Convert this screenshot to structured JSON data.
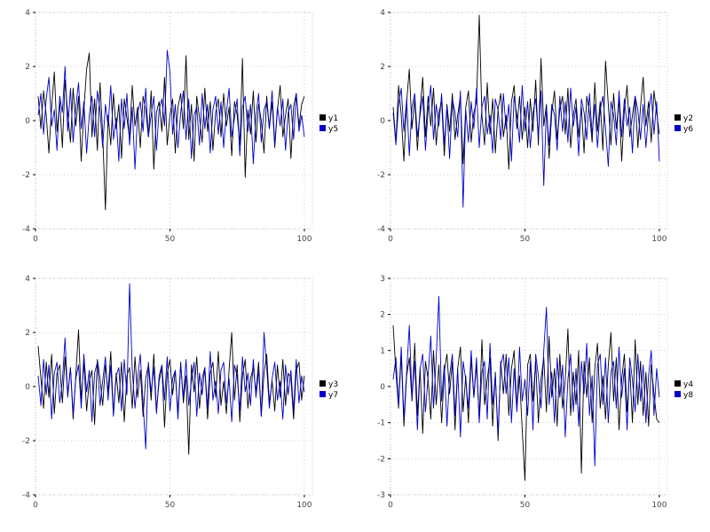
{
  "page": {
    "background": "#ffffff"
  },
  "chart_data": [
    {
      "type": "line",
      "panel": "top-left",
      "title": "",
      "xlabel": "",
      "ylabel": "",
      "xlim": [
        0,
        103
      ],
      "ylim": [
        -4,
        4
      ],
      "xticks": [
        0,
        50,
        100
      ],
      "yticks": [
        -4,
        -2,
        0,
        2,
        4
      ],
      "grid": true,
      "legend_position": "right-center",
      "x_start": 1,
      "series": [
        {
          "name": "y1",
          "color": "#000000",
          "values": [
            0.9,
            -0.3,
            1.1,
            0.2,
            -1.2,
            0.5,
            1.8,
            -0.4,
            0.7,
            -1.0,
            1.5,
            0.3,
            -0.8,
            1.2,
            -0.2,
            0.9,
            -1.5,
            0.4,
            1.9,
            2.5,
            -0.6,
            0.8,
            -1.1,
            1.4,
            -0.5,
            -3.3,
            0.2,
            -0.9,
            1.0,
            -0.3,
            0.6,
            -1.4,
            0.8,
            0.1,
            -0.7,
            1.3,
            -0.2,
            0.5,
            -1.0,
            0.9,
            0.4,
            -0.6,
            1.1,
            -1.8,
            0.3,
            0.7,
            -0.4,
            1.6,
            -0.9,
            0.2,
            0.8,
            -1.2,
            0.5,
            1.0,
            -0.3,
            2.4,
            -0.7,
            0.6,
            -1.5,
            0.9,
            0.1,
            -0.8,
            1.2,
            -0.4,
            0.7,
            -1.1,
            0.3,
            0.8,
            -0.6,
            1.0,
            -0.2,
            0.5,
            -1.3,
            0.7,
            0.2,
            -0.9,
            2.3,
            -2.1,
            0.4,
            -0.5,
            1.1,
            -0.8,
            0.6,
            0.0,
            -1.2,
            0.9,
            -0.3,
            0.7,
            -1.0,
            0.4,
            1.3,
            -0.6,
            0.2,
            0.8,
            -1.4,
            0.5,
            1.0,
            -0.2,
            0.6,
            0.9
          ]
        },
        {
          "name": "y5",
          "color": "#0000cc",
          "values": [
            0.2,
            1.0,
            -0.5,
            0.8,
            1.6,
            -0.2,
            0.4,
            -1.1,
            0.9,
            0.3,
            2.0,
            -0.4,
            1.2,
            -0.8,
            0.5,
            1.4,
            -0.3,
            0.7,
            -1.2,
            0.2,
            0.9,
            -0.6,
            1.1,
            0.4,
            -1.0,
            0.6,
            -0.2,
            1.3,
            -0.7,
            0.1,
            -1.5,
            0.8,
            -0.3,
            1.0,
            -0.9,
            0.5,
            -1.8,
            0.3,
            0.7,
            -0.4,
            1.2,
            -0.6,
            0.2,
            0.9,
            -1.1,
            0.4,
            0.8,
            -0.2,
            2.6,
            1.8,
            -0.5,
            0.6,
            -1.0,
            0.3,
            1.1,
            -0.7,
            0.8,
            -1.4,
            0.2,
            0.5,
            -0.9,
            1.0,
            -0.3,
            0.6,
            -1.2,
            0.4,
            0.9,
            -0.5,
            0.7,
            -1.0,
            0.3,
            1.2,
            -0.6,
            0.1,
            0.8,
            -1.3,
            0.5,
            0.9,
            -0.4,
            0.6,
            -1.6,
            0.2,
            1.0,
            -0.8,
            0.4,
            0.7,
            -0.3,
            1.1,
            -0.9,
            0.5,
            -0.2,
            0.8,
            -1.1,
            0.3,
            0.6,
            -0.7,
            1.0,
            -0.4,
            0.2,
            -0.6
          ]
        }
      ]
    },
    {
      "type": "line",
      "panel": "top-right",
      "title": "",
      "xlabel": "",
      "ylabel": "",
      "xlim": [
        0,
        103
      ],
      "ylim": [
        -4,
        4
      ],
      "xticks": [
        0,
        50,
        100
      ],
      "yticks": [
        -4,
        -2,
        0,
        2,
        4
      ],
      "grid": true,
      "legend_position": "right-center",
      "x_start": 1,
      "series": [
        {
          "name": "y2",
          "color": "#000000",
          "values": [
            0.5,
            -0.8,
            1.3,
            0.2,
            -1.5,
            0.7,
            1.9,
            -0.3,
            0.8,
            -1.1,
            0.4,
            1.6,
            -0.6,
            0.9,
            -0.2,
            1.2,
            -0.9,
            0.3,
            0.7,
            -1.3,
            0.6,
            -0.4,
            1.0,
            -0.7,
            0.2,
            0.9,
            -1.6,
            0.5,
            1.1,
            -0.8,
            0.3,
            0.7,
            3.9,
            0.2,
            -0.9,
            1.4,
            -0.5,
            0.8,
            -1.2,
            0.4,
            1.0,
            -0.6,
            0.2,
            -1.8,
            0.7,
            1.3,
            -0.3,
            0.9,
            -0.7,
            0.5,
            -1.0,
            0.8,
            -0.4,
            1.5,
            -0.9,
            2.3,
            -0.2,
            0.6,
            -1.4,
            0.3,
            1.1,
            -0.7,
            0.4,
            0.9,
            -0.5,
            1.2,
            -1.0,
            0.2,
            0.8,
            -0.6,
            0.5,
            -1.2,
            0.9,
            0.3,
            -0.8,
            1.4,
            -0.4,
            0.7,
            -1.1,
            2.2,
            0.6,
            -0.9,
            1.0,
            -0.3,
            0.8,
            -1.5,
            0.4,
            1.3,
            -0.6,
            0.2,
            0.9,
            -1.0,
            0.5,
            1.6,
            -0.2,
            0.7,
            -0.8,
            1.1,
            0.3,
            -0.5
          ]
        },
        {
          "name": "y6",
          "color": "#0000cc",
          "values": [
            0.3,
            -0.9,
            0.6,
            1.2,
            -0.4,
            0.8,
            -1.3,
            0.5,
            1.0,
            -0.6,
            0.2,
            0.9,
            -1.1,
            0.4,
            1.3,
            -0.7,
            0.6,
            -0.2,
            1.0,
            -0.9,
            0.5,
            -1.4,
            0.8,
            0.3,
            -0.6,
            1.1,
            -3.2,
            0.4,
            -0.8,
            0.7,
            -0.3,
            1.2,
            -1.0,
            0.5,
            0.9,
            -0.5,
            0.2,
            -1.2,
            0.8,
            0.4,
            -0.7,
            1.0,
            -0.3,
            0.6,
            -1.5,
            0.9,
            0.2,
            -0.8,
            1.3,
            -0.4,
            0.7,
            -1.0,
            0.3,
            0.8,
            -0.6,
            1.1,
            -2.4,
            0.5,
            -0.9,
            0.6,
            0.2,
            -1.1,
            0.9,
            -0.4,
            0.7,
            -0.8,
            1.2,
            -0.2,
            0.5,
            -1.3,
            0.8,
            0.3,
            -0.7,
            1.0,
            -0.5,
            0.6,
            -1.0,
            0.4,
            0.9,
            -0.3,
            -1.7,
            0.7,
            0.2,
            -0.9,
            1.1,
            -0.6,
            0.8,
            -0.2,
            0.5,
            -1.2,
            0.9,
            0.4,
            -0.7,
            0.6,
            -1.0,
            0.3,
            1.0,
            -0.5,
            0.7,
            -1.5
          ]
        }
      ]
    },
    {
      "type": "line",
      "panel": "bottom-left",
      "title": "",
      "xlabel": "",
      "ylabel": "",
      "xlim": [
        0,
        103
      ],
      "ylim": [
        -4,
        4
      ],
      "xticks": [
        0,
        50,
        100
      ],
      "yticks": [
        -4,
        -2,
        0,
        2,
        4
      ],
      "grid": true,
      "legend_position": "right-center",
      "x_start": 1,
      "series": [
        {
          "name": "y3",
          "color": "#000000",
          "values": [
            1.5,
            0.3,
            -0.8,
            0.9,
            -0.4,
            1.2,
            -1.0,
            0.5,
            0.8,
            -0.6,
            1.1,
            -0.3,
            0.7,
            -1.2,
            0.4,
            2.1,
            -0.5,
            0.9,
            -0.9,
            0.2,
            0.6,
            -1.4,
            1.0,
            0.3,
            -0.7,
            0.8,
            -0.2,
            1.3,
            -1.0,
            0.5,
            -0.6,
            0.9,
            -1.3,
            0.4,
            0.7,
            -0.8,
            1.1,
            -0.4,
            0.6,
            -1.1,
            0.3,
            0.8,
            -0.5,
            1.2,
            -0.9,
            0.2,
            0.7,
            -1.5,
            0.5,
            1.0,
            -0.3,
            0.6,
            -1.0,
            0.9,
            -0.6,
            0.4,
            -2.5,
            0.8,
            -0.2,
            1.1,
            -0.8,
            0.3,
            0.7,
            -1.2,
            0.5,
            0.9,
            -0.4,
            1.3,
            -0.7,
            0.2,
            -1.0,
            0.6,
            2.0,
            -0.5,
            0.8,
            -1.3,
            0.4,
            1.0,
            -0.8,
            0.3,
            0.7,
            -0.2,
            0.9,
            -1.1,
            0.5,
            1.2,
            -0.6,
            0.2,
            -0.9,
            0.8,
            -0.4,
            1.0,
            -0.7,
            0.5,
            0.3,
            -1.2,
            0.6,
            0.9,
            -0.5,
            0.4
          ]
        },
        {
          "name": "y7",
          "color": "#0000cc",
          "values": [
            0.4,
            -0.7,
            1.0,
            -0.3,
            0.8,
            -1.2,
            0.5,
            0.9,
            -0.6,
            0.2,
            1.8,
            -0.4,
            0.7,
            -1.0,
            0.3,
            0.8,
            -0.8,
            1.2,
            -0.2,
            0.6,
            -1.3,
            0.5,
            0.9,
            -0.7,
            0.2,
            1.1,
            -0.5,
            0.8,
            -1.1,
            0.4,
            0.7,
            -0.9,
            1.0,
            -0.3,
            3.8,
            0.6,
            -0.8,
            0.3,
            1.2,
            -0.6,
            -2.3,
            0.9,
            -0.2,
            0.7,
            -1.0,
            0.4,
            0.8,
            -0.5,
            1.1,
            -0.9,
            0.3,
            0.6,
            -1.2,
            0.8,
            -0.4,
            1.0,
            -0.7,
            0.2,
            0.9,
            -1.1,
            0.5,
            -0.3,
            0.7,
            -0.8,
            1.3,
            -0.5,
            0.2,
            -1.0,
            0.6,
            0.9,
            -0.6,
            0.3,
            -1.3,
            0.8,
            0.4,
            -0.9,
            1.1,
            -0.2,
            0.5,
            -0.7,
            1.0,
            -0.4,
            0.6,
            -1.1,
            2.0,
            0.7,
            -0.8,
            0.3,
            0.9,
            -0.5,
            0.2,
            -1.2,
            0.8,
            -0.3,
            0.6,
            -0.9,
            1.0,
            -0.6,
            0.4,
            -0.2
          ]
        }
      ]
    },
    {
      "type": "line",
      "panel": "bottom-right",
      "title": "",
      "xlabel": "",
      "ylabel": "",
      "xlim": [
        0,
        103
      ],
      "ylim": [
        -3,
        3
      ],
      "xticks": [
        0,
        50,
        100
      ],
      "yticks": [
        -3,
        -2,
        -1,
        0,
        1,
        2,
        3
      ],
      "grid": true,
      "legend_position": "right-center",
      "x_start": 1,
      "series": [
        {
          "name": "y4",
          "color": "#000000",
          "values": [
            1.7,
            0.4,
            -0.6,
            0.9,
            -1.1,
            0.3,
            0.8,
            -0.4,
            1.2,
            -0.8,
            0.5,
            -1.3,
            0.7,
            0.2,
            -0.9,
            1.0,
            -0.5,
            0.6,
            -1.0,
            0.4,
            0.9,
            -0.2,
            0.7,
            -1.2,
            0.5,
            1.1,
            -0.7,
            0.3,
            -1.0,
            0.8,
            -0.3,
            0.6,
            -0.9,
            1.3,
            -0.5,
            0.2,
            0.8,
            -1.1,
            0.4,
            -1.5,
            0.7,
            -0.2,
            0.9,
            -0.8,
            0.5,
            1.0,
            -0.6,
            0.3,
            -1.2,
            -2.6,
            0.6,
            0.9,
            -0.4,
            0.7,
            -1.0,
            0.2,
            0.8,
            -0.7,
            1.4,
            -0.3,
            0.5,
            -1.1,
            0.9,
            -0.6,
            0.2,
            1.6,
            -0.8,
            0.4,
            -0.5,
            1.0,
            -2.4,
            0.7,
            -0.3,
            0.8,
            -1.0,
            0.5,
            1.2,
            -0.6,
            0.3,
            -0.9,
            0.6,
            1.5,
            -0.4,
            0.8,
            -1.2,
            0.2,
            0.9,
            -0.7,
            0.5,
            -1.0,
            1.3,
            -0.5,
            0.7,
            -0.8,
            0.4,
            -1.1,
            0.6,
            -0.2,
            -0.9,
            -1.0
          ]
        },
        {
          "name": "y8",
          "color": "#0000cc",
          "values": [
            0.2,
            0.8,
            -0.5,
            1.1,
            -0.9,
            0.4,
            1.7,
            -0.3,
            0.7,
            -1.2,
            0.5,
            0.9,
            -0.7,
            0.3,
            1.4,
            -0.6,
            0.8,
            2.5,
            -0.4,
            0.6,
            -1.1,
            0.3,
            0.9,
            -0.8,
            0.5,
            -1.4,
            0.7,
            0.2,
            -0.6,
            1.0,
            -0.3,
            0.8,
            -1.0,
            0.4,
            0.7,
            -0.9,
            1.2,
            -0.5,
            0.3,
            -1.3,
            0.6,
            0.9,
            -0.2,
            0.8,
            -1.0,
            0.5,
            -0.7,
            1.1,
            -0.4,
            0.2,
            -0.8,
            0.7,
            -1.2,
            0.9,
            0.3,
            -0.6,
            1.0,
            2.2,
            -0.5,
            0.4,
            -1.0,
            0.8,
            -0.3,
            0.6,
            -1.4,
            0.2,
            0.9,
            -0.7,
            0.5,
            -1.1,
            0.7,
            -0.2,
            1.2,
            -0.8,
            0.3,
            -2.2,
            0.6,
            0.9,
            -0.5,
            0.8,
            -1.0,
            0.4,
            0.7,
            -0.6,
            1.1,
            -0.3,
            0.5,
            -1.2,
            0.8,
            0.2,
            -0.7,
            0.9,
            -0.4,
            0.6,
            -1.0,
            0.3,
            1.0,
            -0.8,
            0.5,
            -0.3
          ]
        }
      ]
    }
  ],
  "style": {
    "grid_color": "#cccccc",
    "tick_color": "#000000",
    "tick_label_color": "#444444",
    "background": "#ffffff"
  }
}
